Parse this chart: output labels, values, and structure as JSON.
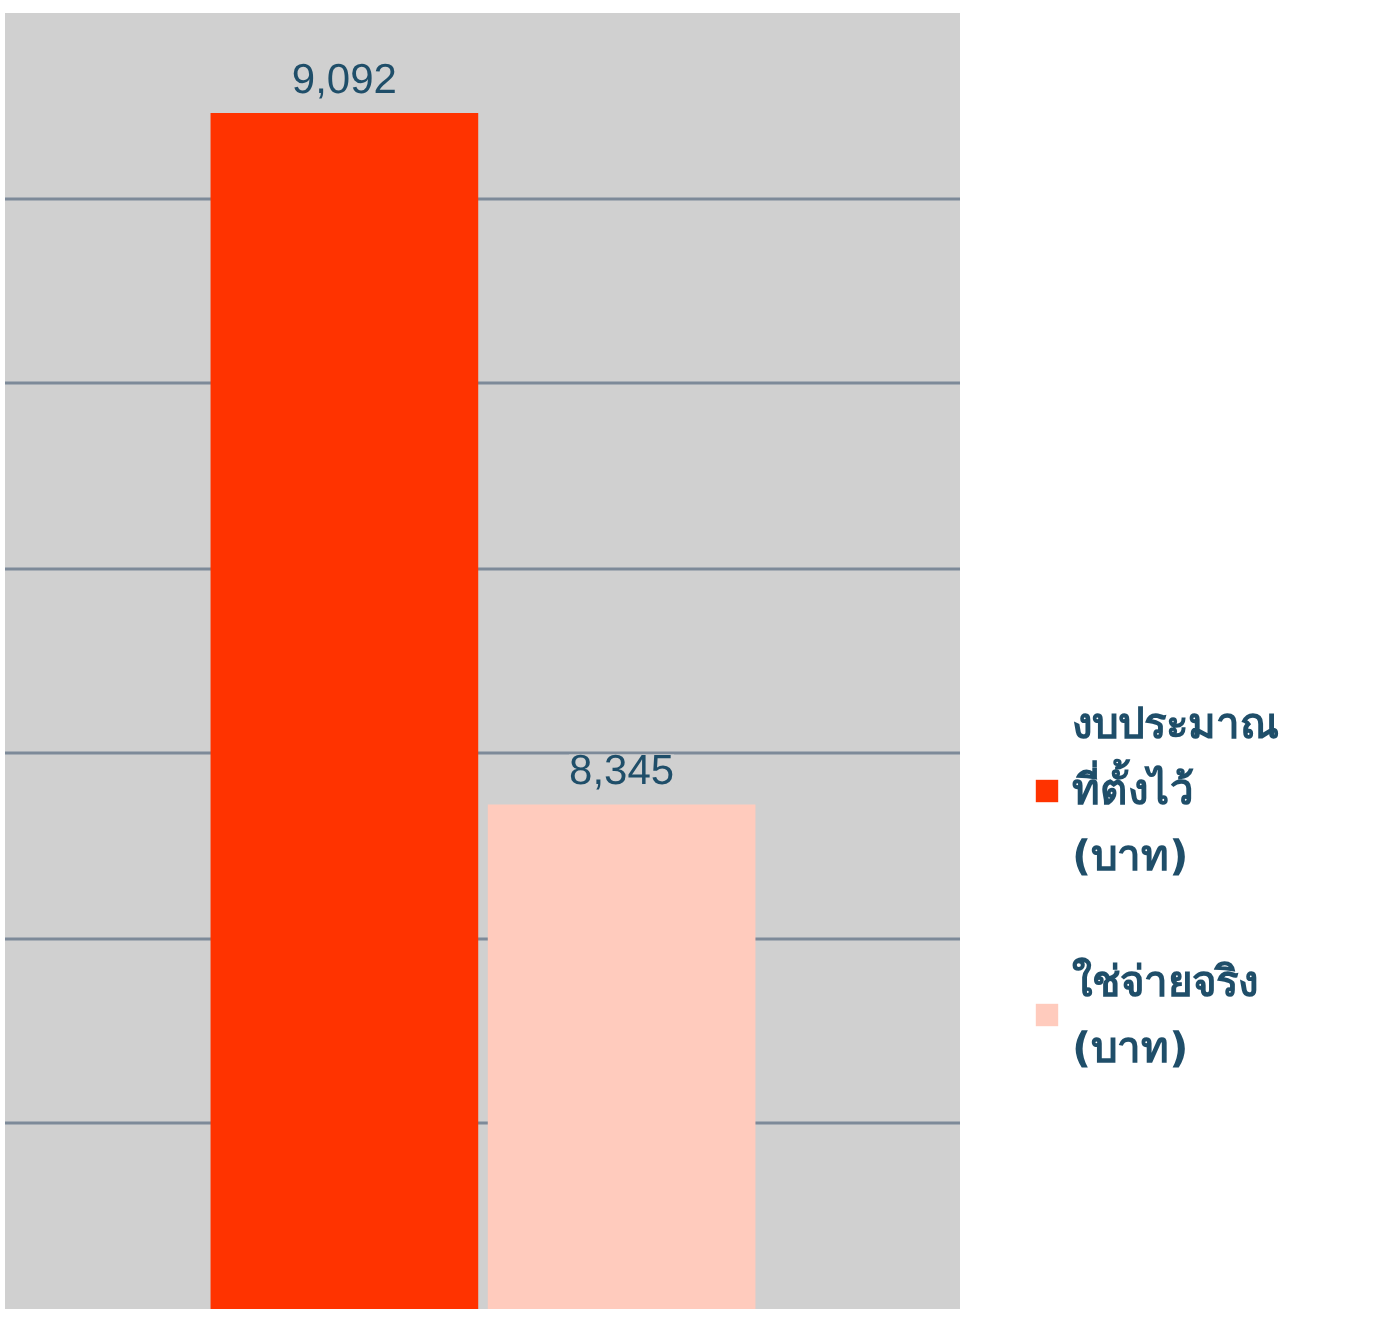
{
  "chart_data": {
    "type": "bar",
    "categories": [
      null
    ],
    "series": [
      {
        "name": "งบประมาณ\nที่ตั้งไว้\n(บาท)",
        "color": "#ff3300",
        "values": [
          9092
        ],
        "value_labels": [
          "9,092"
        ]
      },
      {
        "name": "ใช่จ่ายจริง\n(บาท)",
        "color": "#ffcbbd",
        "values": [
          8345
        ],
        "value_labels": [
          "8,345"
        ]
      }
    ],
    "ylim": [
      7800,
      9200
    ],
    "yticks": [
      {
        "value": 7800,
        "label": null
      },
      {
        "value": 8000,
        "label": null
      },
      {
        "value": 8200,
        "label": null
      },
      {
        "value": 8400,
        "label": null
      },
      {
        "value": 8600,
        "label": null
      },
      {
        "value": 8800,
        "label": null
      },
      {
        "value": 9000,
        "label": null
      },
      {
        "value": 9200,
        "label": null
      }
    ],
    "grid": "y",
    "legend": "right",
    "tick_labels": false,
    "data_labels": true
  }
}
